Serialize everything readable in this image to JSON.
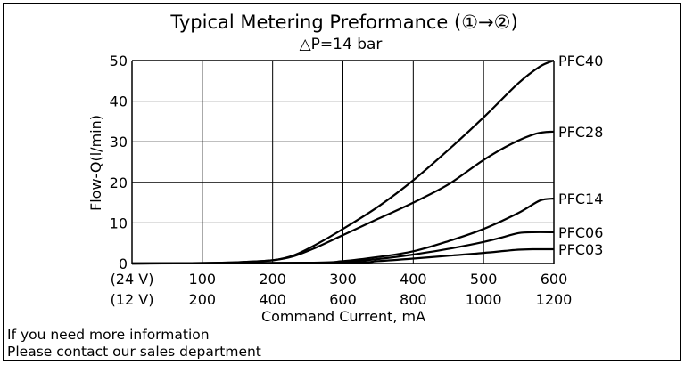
{
  "chart_data": {
    "type": "line",
    "title": "Typical Metering Preformance (①→②)",
    "subtitle": "△P=14 bar",
    "ylabel": "Flow-Q(l/min)",
    "xlabel": "Command Current, mA",
    "ylim": [
      0,
      50
    ],
    "xlim": [
      0,
      600
    ],
    "grid": true,
    "y_ticks": [
      "0",
      "10",
      "20",
      "30",
      "40",
      "50"
    ],
    "x_ticks_24v": [
      "(24 V)",
      "100",
      "200",
      "300",
      "400",
      "500",
      "600"
    ],
    "x_ticks_12v": [
      "(12 V)",
      "200",
      "400",
      "600",
      "800",
      "1000",
      "1200"
    ],
    "series": [
      {
        "name": "PFC40",
        "x": [
          0,
          100,
          150,
          200,
          230,
          260,
          300,
          350,
          400,
          450,
          500,
          550,
          580,
          600
        ],
        "y": [
          0,
          0.1,
          0.3,
          0.8,
          2,
          4.5,
          8.5,
          14,
          20.5,
          28,
          36,
          44.5,
          48.5,
          50
        ]
      },
      {
        "name": "PFC28",
        "x": [
          0,
          100,
          150,
          200,
          230,
          260,
          300,
          350,
          400,
          450,
          500,
          540,
          575,
          600
        ],
        "y": [
          0,
          0.1,
          0.3,
          0.8,
          1.8,
          3.8,
          7,
          11,
          15,
          19.5,
          25.5,
          29.5,
          32,
          32.5
        ]
      },
      {
        "name": "PFC14",
        "x": [
          0,
          250,
          300,
          350,
          400,
          450,
          500,
          550,
          580,
          600
        ],
        "y": [
          0,
          0.2,
          0.6,
          1.6,
          3,
          5.5,
          8.5,
          12.5,
          15.5,
          16
        ]
      },
      {
        "name": "PFC06",
        "x": [
          0,
          250,
          300,
          350,
          400,
          450,
          500,
          530,
          550,
          570,
          600
        ],
        "y": [
          0,
          0.1,
          0.4,
          1.1,
          2.2,
          3.6,
          5.3,
          6.6,
          7.5,
          7.7,
          7.7
        ]
      },
      {
        "name": "PFC03",
        "x": [
          0,
          300,
          350,
          400,
          450,
          500,
          530,
          550,
          570,
          600
        ],
        "y": [
          0,
          0.2,
          0.6,
          1.2,
          1.9,
          2.6,
          3.1,
          3.4,
          3.5,
          3.5
        ]
      }
    ]
  },
  "notes": {
    "line1": "If you need more information",
    "line2": "Please contact our sales department"
  }
}
